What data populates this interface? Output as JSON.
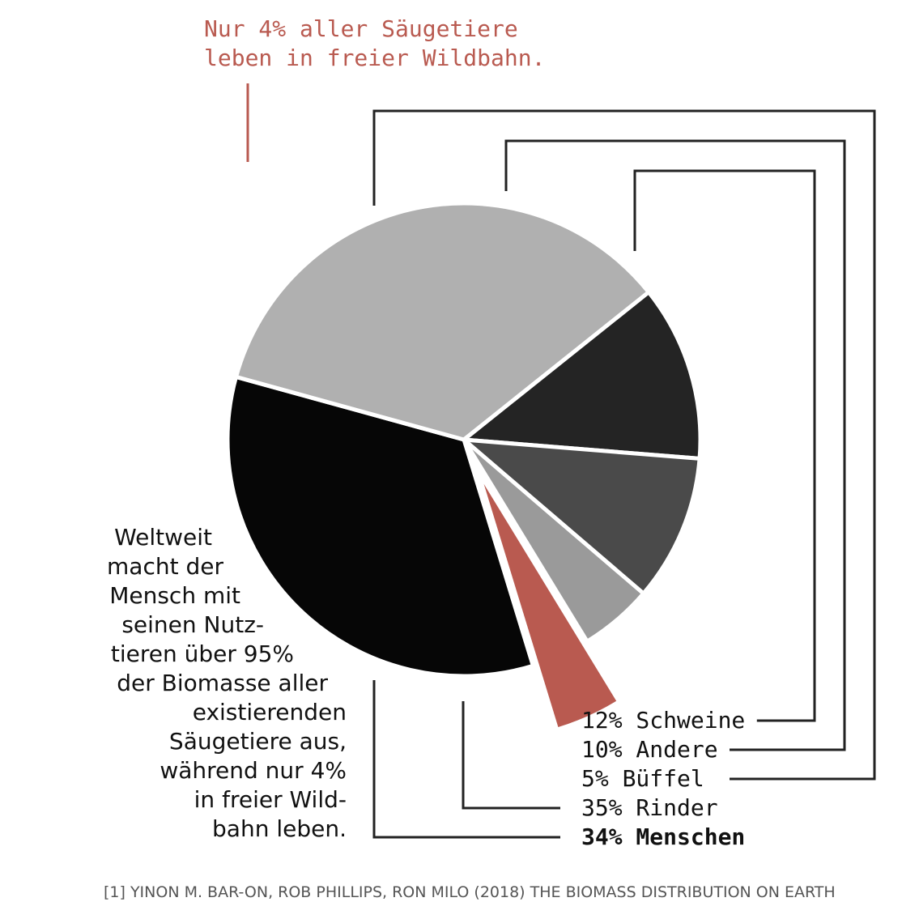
{
  "chart_data": {
    "type": "pie",
    "annotation": [
      "Nur 4% aller Säugetiere",
      "leben in freier Wildbahn."
    ],
    "slices": [
      {
        "label": "Menschen",
        "value": 34,
        "display": "34%",
        "color": "#060606"
      },
      {
        "label": "Rinder",
        "value": 35,
        "display": "35%",
        "color": "#b0b0b0"
      },
      {
        "label": "Schweine",
        "value": 12,
        "display": "12%",
        "color": "#242424"
      },
      {
        "label": "Andere",
        "value": 10,
        "display": "10%",
        "color": "#4a4a4a"
      },
      {
        "label": "Büffel",
        "value": 5,
        "display": "5%",
        "color": "#9a9a9a"
      },
      {
        "label": "Wild",
        "value": 4,
        "color": "#b95a50",
        "exploded": true
      }
    ],
    "legend_order": [
      "Schweine",
      "Andere",
      "Büffel",
      "Rinder",
      "Menschen"
    ],
    "note_lines": [
      "Weltweit",
      "macht der",
      "Mensch mit",
      "seinen Nutz-",
      "tieren über 95%",
      "der Biomasse aller",
      "existierenden",
      "Säugetiere aus,",
      "während nur 4%",
      "in freier Wild-",
      "bahn leben."
    ],
    "source": "[1] YINON M. BAR-ON, ROB PHILLIPS, RON MILO (2018) THE BIOMASS DISTRIBUTION ON EARTH"
  }
}
